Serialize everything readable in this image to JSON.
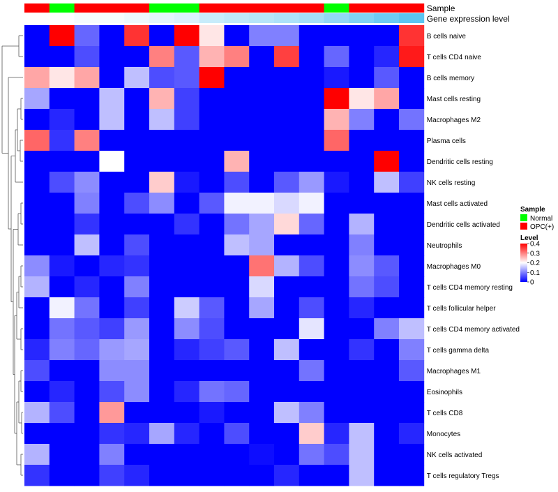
{
  "chart_data": {
    "type": "heatmap",
    "annotation_titles": {
      "sample": "Sample",
      "expression": "Gene expression level"
    },
    "sample_groups": [
      "OPC(+)",
      "Normal",
      "OPC(+)",
      "OPC(+)",
      "OPC(+)",
      "Normal",
      "Normal",
      "OPC(+)",
      "OPC(+)",
      "OPC(+)",
      "OPC(+)",
      "OPC(+)",
      "Normal",
      "OPC(+)",
      "OPC(+)",
      "OPC(+)"
    ],
    "expression_level": [
      0.18,
      0.18,
      0.17,
      0.17,
      0.16,
      0.15,
      0.14,
      0.12,
      0.11,
      0.1,
      0.09,
      0.08,
      0.06,
      0.04,
      0.02,
      0.0
    ],
    "rows": [
      {
        "label": "B cells naive",
        "values": [
          0,
          0.4,
          0.08,
          0,
          0.36,
          0,
          0.4,
          0.22,
          0,
          0.1,
          0.1,
          0,
          0,
          0,
          0,
          0.36
        ]
      },
      {
        "label": "T cells CD4 naive",
        "values": [
          0,
          0,
          0.06,
          0,
          0,
          0.3,
          0.07,
          0.26,
          0.3,
          0,
          0.35,
          0,
          0.08,
          0,
          0.03,
          0.38
        ]
      },
      {
        "label": "B cells memory",
        "values": [
          0.27,
          0.22,
          0.27,
          0,
          0.15,
          0.06,
          0.07,
          0.4,
          0,
          0,
          0,
          0,
          0.02,
          0,
          0.07,
          0
        ]
      },
      {
        "label": "Mast cells resting",
        "values": [
          0.13,
          0,
          0,
          0.15,
          0,
          0.26,
          0.05,
          0,
          0,
          0,
          0,
          0,
          0.4,
          0.22,
          0.27,
          0
        ]
      },
      {
        "label": "Macrophages M2",
        "values": [
          0,
          0.03,
          0,
          0.15,
          0,
          0.15,
          0.05,
          0,
          0,
          0,
          0,
          0,
          0.26,
          0.1,
          0,
          0.09
        ]
      },
      {
        "label": "Plasma cells",
        "values": [
          0.32,
          0.04,
          0.3,
          0,
          0,
          0,
          0,
          0,
          0,
          0,
          0,
          0,
          0.32,
          0,
          0,
          0
        ]
      },
      {
        "label": "Dendritic cells resting",
        "values": [
          0,
          0,
          0,
          0.2,
          0,
          0,
          0,
          0,
          0.26,
          0,
          0,
          0,
          0,
          0,
          0.4,
          0
        ]
      },
      {
        "label": "NK cells resting",
        "values": [
          0,
          0.06,
          0.11,
          0,
          0,
          0.24,
          0.02,
          0,
          0.06,
          0,
          0.07,
          0.12,
          0.02,
          0,
          0.15,
          0.05
        ]
      },
      {
        "label": "Mast cells activated",
        "values": [
          0,
          0,
          0.1,
          0,
          0.06,
          0.11,
          0,
          0.07,
          0.19,
          0.19,
          0.17,
          0.19,
          0,
          0,
          0,
          0
        ]
      },
      {
        "label": "Dendritic cells activated",
        "values": [
          0,
          0,
          0.04,
          0,
          0,
          0,
          0.04,
          0,
          0.09,
          0.13,
          0.23,
          0.08,
          0,
          0.14,
          0,
          0
        ]
      },
      {
        "label": "Neutrophils",
        "values": [
          0,
          0,
          0.15,
          0,
          0.06,
          0,
          0,
          0,
          0.15,
          0.13,
          0,
          0,
          0,
          0.1,
          0,
          0
        ]
      },
      {
        "label": "Macrophages M0",
        "values": [
          0.11,
          0.02,
          0,
          0.03,
          0.04,
          0,
          0,
          0,
          0,
          0.31,
          0.14,
          0.06,
          0,
          0.11,
          0.07,
          0
        ]
      },
      {
        "label": "T cells CD4 memory resting",
        "values": [
          0.14,
          0,
          0.03,
          0,
          0.1,
          0,
          0,
          0,
          0,
          0.17,
          0,
          0,
          0,
          0.09,
          0.06,
          0
        ]
      },
      {
        "label": "T cells follicular helper",
        "values": [
          0,
          0.19,
          0.09,
          0,
          0.05,
          0,
          0.16,
          0.07,
          0,
          0.13,
          0,
          0.06,
          0,
          0.03,
          0,
          0
        ]
      },
      {
        "label": "T cells CD4 memory activated",
        "values": [
          0,
          0.09,
          0.07,
          0.05,
          0.12,
          0,
          0.11,
          0.06,
          0,
          0,
          0,
          0.18,
          0,
          0,
          0.1,
          0.15
        ]
      },
      {
        "label": "T cells gamma delta",
        "values": [
          0.03,
          0.1,
          0.08,
          0.12,
          0.13,
          0,
          0.03,
          0.05,
          0.07,
          0,
          0.15,
          0,
          0,
          0.04,
          0,
          0.1
        ]
      },
      {
        "label": "Macrophages M1",
        "values": [
          0.06,
          0,
          0,
          0.11,
          0.11,
          0,
          0,
          0,
          0,
          0,
          0,
          0.09,
          0,
          0,
          0,
          0.07
        ]
      },
      {
        "label": "Eosinophils",
        "values": [
          0,
          0.03,
          0,
          0.06,
          0.11,
          0,
          0.03,
          0.09,
          0.08,
          0,
          0,
          0,
          0,
          0,
          0,
          0
        ]
      },
      {
        "label": "T cells CD8",
        "values": [
          0.14,
          0.06,
          0,
          0.28,
          0,
          0,
          0,
          0.02,
          0,
          0,
          0.15,
          0.1,
          0,
          0,
          0,
          0
        ]
      },
      {
        "label": "Monocytes",
        "values": [
          0,
          0,
          0,
          0.04,
          0.03,
          0.13,
          0.03,
          0,
          0.06,
          0,
          0,
          0.24,
          0.03,
          0.15,
          0,
          0.03
        ]
      },
      {
        "label": "NK cells activated",
        "values": [
          0.14,
          0,
          0,
          0.1,
          0,
          0,
          0,
          0,
          0,
          0.01,
          0,
          0.09,
          0.06,
          0.15,
          0,
          0
        ]
      },
      {
        "label": "T cells regulatory  Tregs",
        "values": [
          0.04,
          0,
          0,
          0.05,
          0.03,
          0,
          0,
          0,
          0,
          0,
          0.03,
          0,
          0,
          0.15,
          0,
          0
        ]
      }
    ],
    "legend": {
      "sample_title": "Sample",
      "sample_entries": [
        {
          "label": "Normal",
          "color": "#00ff00"
        },
        {
          "label": "OPC(+)",
          "color": "#ff0000"
        }
      ],
      "level_title": "Level",
      "level_ticks": [
        "0.4",
        "0.3",
        "0.2",
        "0.1",
        "0"
      ],
      "level_range": [
        0,
        0.4
      ]
    },
    "colors": {
      "low": "#0000ff",
      "mid": "#ffffff",
      "high": "#ff0000",
      "normal": "#00ff00",
      "opc": "#ff0000",
      "expr_low": "#ffffff",
      "expr_high": "#5bc5f2"
    }
  }
}
